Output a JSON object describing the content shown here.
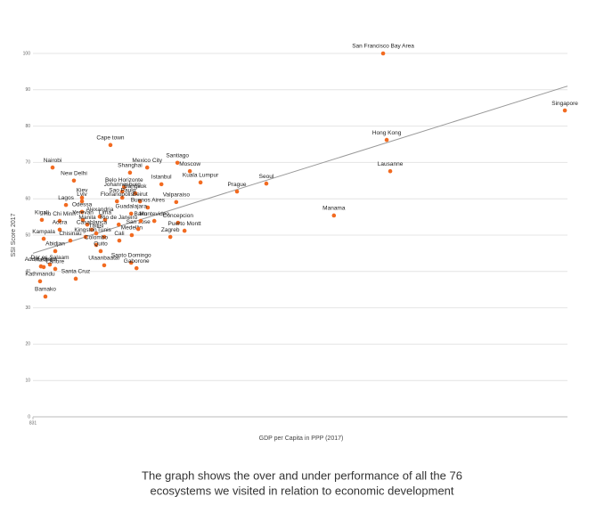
{
  "chart_data": {
    "type": "scatter",
    "y_label": "SSI Score 2017",
    "x_label": "GDP per Capita in PPP (2017)",
    "caption": [
      "The graph shows the over and under performance of all the 76",
      "ecosystems we visited in relation to economic development"
    ],
    "xlim": [
      831,
      91000
    ],
    "xticks": [
      831
    ],
    "ylim": [
      0,
      100
    ],
    "yticks": [
      0,
      10,
      20,
      30,
      40,
      50,
      60,
      70,
      80,
      90,
      100
    ],
    "grid": true,
    "color": "#f26b21",
    "trend_color": "#999999",
    "trendline": {
      "x": [
        831,
        91000
      ],
      "y": [
        45,
        91
      ]
    },
    "labels": [
      "San Francisco Bay Area",
      "Singapore",
      "Hong Kong",
      "Lausanne",
      "Manama",
      "Seoul",
      "Prague",
      "Kuala Lumpur",
      "Santiago",
      "Moscow",
      "Mexico City",
      "Shanghai",
      "Istanbul",
      "Cape town",
      "Nairobi",
      "New Delhi",
      "Belo Horizonte",
      "Johannesburg",
      "Bangkok",
      "Sao Paulo",
      "Florianopolis",
      "Beirut",
      "Valparaiso",
      "Buenos Aires",
      "Guadalajara",
      "Lagos",
      "Lviv",
      "Kiev",
      "Odessa",
      "Kigali",
      "Ho Chi Minh",
      "Yerevan",
      "Alexandria",
      "Lima",
      "Kampala",
      "Accra",
      "Manila",
      "Casablanca",
      "Tbilisi",
      "Chisinau",
      "Kingston",
      "Tunis",
      "Cali",
      "Colombo",
      "Medellin",
      "San Jose",
      "Rio de Janeiro",
      "Baku",
      "Montevideo",
      "Concepcion",
      "Puerto Montt",
      "Zagreb",
      "Abidjan",
      "Quito",
      "Ulaanbaatar",
      "Santo Domingo",
      "Gaborone",
      "Dar es Salaam",
      "Addis Ababa",
      "Lahore",
      "Harare",
      "Santa Cruz",
      "Kathmandu",
      "Bamako"
    ],
    "x": [
      59900,
      90560,
      60500,
      61100,
      51600,
      40200,
      35250,
      29100,
      25200,
      27300,
      20100,
      17200,
      22500,
      13900,
      4140,
      7740,
      16200,
      15900,
      18100,
      15900,
      15000,
      18900,
      25000,
      20200,
      17400,
      6400,
      9100,
      9100,
      9100,
      2330,
      5340,
      9250,
      12100,
      13000,
      2640,
      5340,
      10000,
      10750,
      11500,
      7140,
      9700,
      12850,
      15400,
      11500,
      17500,
      18600,
      15300,
      19000,
      21300,
      25300,
      26400,
      24000,
      4590,
      12250,
      12850,
      17400,
      18300,
      3690,
      2180,
      4590,
      2640,
      8050,
      2030,
      2930
    ],
    "y": [
      100,
      84.3,
      76.2,
      67.6,
      55.4,
      64.2,
      62.0,
      64.5,
      69.9,
      67.6,
      68.6,
      67.2,
      64.0,
      74.8,
      68.6,
      65.0,
      63.2,
      62.0,
      61.5,
      60.3,
      59.3,
      59.3,
      59.1,
      57.6,
      55.9,
      58.3,
      59.3,
      60.3,
      56.4,
      54.2,
      53.9,
      54.2,
      55.1,
      54.2,
      49.0,
      51.5,
      52.9,
      51.5,
      50.5,
      48.5,
      49.5,
      49.5,
      48.5,
      47.3,
      50.0,
      51.7,
      52.9,
      53.9,
      53.9,
      53.4,
      51.2,
      49.5,
      45.6,
      45.6,
      41.7,
      42.4,
      40.9,
      41.9,
      41.4,
      40.7,
      41.2,
      38.0,
      37.3,
      33.1
    ]
  }
}
